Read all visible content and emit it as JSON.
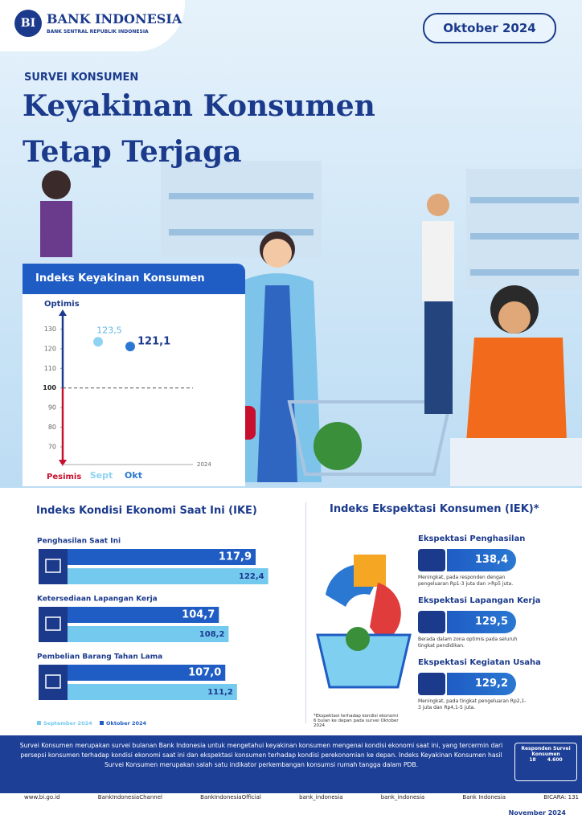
{
  "header": {
    "brand": "BANK INDONESIA",
    "brand_sub": "BANK SENTRAL REPUBLIK INDONESIA",
    "period": "Oktober 2024",
    "kicker": "SURVEI KONSUMEN",
    "title_line1": "Keyakinan Konsumen",
    "title_line2": "Tetap Terjaga"
  },
  "ikk": {
    "type": "scatter",
    "title": "Indeks Keyakinan Konsumen",
    "top_label": "Optimis",
    "bottom_label": "Pesimis",
    "year": "2024",
    "categories": [
      "Sept",
      "Okt"
    ],
    "values": [
      123.5,
      121.1
    ],
    "value_labels": [
      "123,5",
      "121,1"
    ],
    "colors": [
      "#8fd3f2",
      "#2a78d2"
    ],
    "ylim": [
      61,
      140
    ],
    "yticks": [
      70,
      80,
      90,
      100,
      110,
      120,
      130
    ]
  },
  "ike": {
    "type": "bar",
    "title": "Indeks Kondisi Ekonomi Saat Ini (IKE)",
    "categories": [
      "Penghasilan Saat Ini",
      "Ketersediaan Lapangan Kerja",
      "Pembelian Barang Tahan Lama"
    ],
    "xlim": [
      40,
      130
    ],
    "series": [
      {
        "name": "September 2024",
        "color": "#74c9ef",
        "values": [
          122.4,
          108.2,
          111.2
        ],
        "value_labels": [
          "122,4",
          "108,2",
          "111,2"
        ]
      },
      {
        "name": "Oktober 2024",
        "color": "#1f5cc4",
        "values": [
          117.9,
          104.7,
          107.0
        ],
        "value_labels": [
          "117,9",
          "104,7",
          "107,0"
        ]
      }
    ]
  },
  "iek": {
    "title": "Indeks Ekspektasi Konsumen (IEK)*",
    "items": [
      {
        "label": "Ekspektasi Penghasilan",
        "value": "138,4",
        "note": "Meningkat, pada responden dengan pengeluaran Rp1-3 juta dan >Rp5 juta."
      },
      {
        "label": "Ekspektasi Lapangan Kerja",
        "value": "129,5",
        "note": "Berada dalam zona optimis pada seluruh tingkat pendidikan."
      },
      {
        "label": "Ekspektasi Kegiatan Usaha",
        "value": "129,2",
        "note": "Meningkat, pada tingkat pengeluaran Rp2,1-3 juta dan Rp4,1-5 juta."
      }
    ],
    "footnote": "*Ekspektasi terhadap kondisi ekonomi 6 bulan ke depan pada survei Oktober 2024"
  },
  "footer": {
    "text": "Survei Konsumen merupakan survei bulanan Bank Indonesia untuk mengetahui keyakinan konsumen mengenai kondisi ekonomi saat ini, yang tercermin dari persepsi konsumen terhadap kondisi ekonomi saat ini dan ekspektasi konsumen terhadap kondisi perekonomian ke depan. Indeks Keyakinan Konsumen hasil Survei Konsumen merupakan salah satu indikator perkembangan konsumsi rumah tangga dalam PDB.",
    "respondents_title": "Responden Survei Konsumen",
    "respondents_a": "18",
    "respondents_b": "4.600",
    "socials": [
      "www.bi.go.id",
      "BankIndonesiaChannel",
      "BankIndonesiaOfficial",
      "bank_indonesia",
      "bank_indonesia",
      "Bank Indonesia",
      "BICARA: 131"
    ],
    "date": "November 2024"
  }
}
